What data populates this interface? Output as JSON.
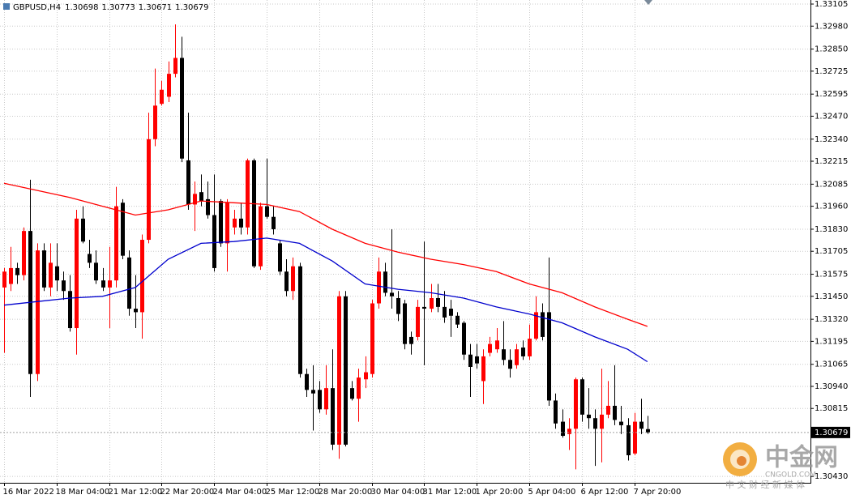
{
  "chart_data": {
    "type": "candlestick",
    "title": "GBPUSD,H4",
    "categories": [
      "16 Mar 2022",
      null,
      null,
      null,
      null,
      null,
      null,
      null,
      "18 Mar 04:00",
      null,
      null,
      null,
      null,
      null,
      null,
      null,
      "21 Mar 12:00",
      null,
      null,
      null,
      null,
      null,
      null,
      null,
      "22 Mar 20:00",
      null,
      null,
      null,
      null,
      null,
      null,
      null,
      "24 Mar 04:00",
      null,
      null,
      null,
      null,
      null,
      null,
      null,
      "25 Mar 12:00",
      null,
      null,
      null,
      null,
      null,
      null,
      null,
      "28 Mar 20:00",
      null,
      null,
      null,
      null,
      null,
      null,
      null,
      "30 Mar 04:00",
      null,
      null,
      null,
      null,
      null,
      null,
      null,
      "31 Mar 12:00",
      null,
      null,
      null,
      null,
      null,
      null,
      null,
      "1 Apr 20:00",
      null,
      null,
      null,
      null,
      null,
      null,
      null,
      "5 Apr 04:00",
      null,
      null,
      null,
      null,
      null,
      null,
      null,
      "6 Apr 12:00",
      null,
      null,
      null,
      null,
      null,
      null,
      null,
      "7 Apr 20:00",
      null,
      null
    ],
    "open": [
      1.315,
      1.3152,
      1.3161,
      1.3157,
      1.3182,
      1.3101,
      1.3171,
      1.315,
      1.3162,
      1.3154,
      1.3148,
      1.3127,
      1.3189,
      1.3169,
      1.3164,
      1.3154,
      1.315,
      1.3154,
      1.3198,
      1.3167,
      1.3138,
      1.3136,
      1.3177,
      1.3234,
      1.3254,
      1.3258,
      1.3271,
      1.328,
      1.3222,
      1.3197,
      1.3204,
      1.32,
      1.3191,
      1.3199,
      1.3175,
      1.3184,
      1.3189,
      1.3184,
      1.3222,
      1.3162,
      1.3196,
      1.319,
      1.3175,
      1.3159,
      1.3148,
      1.3162,
      1.3101,
      1.3092,
      1.3092,
      1.3081,
      1.3093,
      1.3061,
      1.3145,
      1.3093,
      1.3087,
      1.3098,
      1.3101,
      1.3141,
      1.3159,
      1.3147,
      1.3144,
      1.3141,
      1.3122,
      1.3122,
      1.3139,
      1.3138,
      1.3144,
      1.3139,
      1.3138,
      1.3134,
      1.313,
      1.3112,
      1.3111,
      1.3097,
      1.3113,
      1.3115,
      1.3115,
      1.3109,
      1.3106,
      1.3116,
      1.3111,
      1.3121,
      1.3136,
      1.3136,
      1.3086,
      1.3074,
      1.3067,
      1.307,
      1.3098,
      1.3078,
      1.3076,
      1.307,
      1.3078,
      1.3083,
      1.3074,
      1.3072,
      1.3056,
      1.3074,
      1.30698
    ],
    "high": [
      1.3161,
      1.3173,
      1.3164,
      1.3184,
      1.3211,
      1.3175,
      1.3175,
      1.3175,
      1.3175,
      1.3159,
      1.3157,
      1.3194,
      1.3196,
      1.3177,
      1.3171,
      1.3161,
      1.3173,
      1.3207,
      1.32,
      1.3171,
      1.3157,
      1.318,
      1.3249,
      1.3274,
      1.3267,
      1.3278,
      1.3299,
      1.3292,
      1.3249,
      1.321,
      1.3214,
      1.321,
      1.3214,
      1.32,
      1.32,
      1.3194,
      1.3198,
      1.3223,
      1.3223,
      1.3198,
      1.3223,
      1.3196,
      1.3177,
      1.3166,
      1.3167,
      1.3164,
      1.3104,
      1.3106,
      1.3097,
      1.3106,
      1.3115,
      1.3148,
      1.3148,
      1.3097,
      1.3104,
      1.3111,
      1.3143,
      1.3167,
      1.3164,
      1.3183,
      1.3148,
      1.3143,
      1.3125,
      1.3143,
      1.3176,
      1.3152,
      1.3152,
      1.3148,
      1.3143,
      1.3136,
      1.3131,
      1.3118,
      1.3118,
      1.3115,
      1.3122,
      1.3127,
      1.3131,
      1.3115,
      1.3118,
      1.312,
      1.3129,
      1.3145,
      1.3141,
      1.3167,
      1.309,
      1.3081,
      1.3076,
      1.3099,
      1.3099,
      1.3093,
      1.3081,
      1.3104,
      1.3097,
      1.3106,
      1.3083,
      1.3076,
      1.3079,
      1.3087,
      1.30773
    ],
    "low": [
      1.3113,
      1.3148,
      1.3152,
      1.3154,
      1.3088,
      1.3097,
      1.3148,
      1.3145,
      1.3148,
      1.3143,
      1.3125,
      1.3112,
      1.3175,
      1.3161,
      1.3152,
      1.3148,
      1.3127,
      1.315,
      1.3166,
      1.3134,
      1.3127,
      1.3121,
      1.3175,
      1.323,
      1.3253,
      1.3255,
      1.3269,
      1.3221,
      1.3194,
      1.3182,
      1.3196,
      1.3189,
      1.3159,
      1.3173,
      1.3159,
      1.318,
      1.318,
      1.318,
      1.3161,
      1.316,
      1.3189,
      1.318,
      1.3157,
      1.3145,
      1.3143,
      1.3099,
      1.3088,
      1.3069,
      1.3079,
      1.3078,
      1.3058,
      1.3053,
      1.306,
      1.3086,
      1.3074,
      1.3093,
      1.3099,
      1.3138,
      1.3145,
      1.3138,
      1.3131,
      1.3115,
      1.3112,
      1.312,
      1.3106,
      1.3136,
      1.3136,
      1.313,
      1.3122,
      1.3127,
      1.3109,
      1.3088,
      1.3104,
      1.3084,
      1.3111,
      1.3113,
      1.3106,
      1.3099,
      1.3104,
      1.3109,
      1.3109,
      1.312,
      1.312,
      1.3083,
      1.307,
      1.3065,
      1.3058,
      1.3047,
      1.3074,
      1.307,
      1.3049,
      1.3051,
      1.3076,
      1.3072,
      1.3067,
      1.3052,
      1.3055,
      1.3067,
      1.30671
    ],
    "close": [
      1.3159,
      1.3161,
      1.3157,
      1.3182,
      1.3101,
      1.3171,
      1.315,
      1.3164,
      1.3154,
      1.3148,
      1.3127,
      1.3189,
      1.3176,
      1.3164,
      1.3154,
      1.315,
      1.3154,
      1.3196,
      1.3168,
      1.3138,
      1.3136,
      1.3177,
      1.3234,
      1.3253,
      1.3262,
      1.3271,
      1.328,
      1.3223,
      1.3197,
      1.3203,
      1.3199,
      1.3191,
      1.3161,
      1.3175,
      1.3198,
      1.3189,
      1.3184,
      1.3222,
      1.3162,
      1.3196,
      1.319,
      1.3183,
      1.3159,
      1.3148,
      1.3162,
      1.3101,
      1.3092,
      1.309,
      1.3081,
      1.3093,
      1.3061,
      1.3145,
      1.3061,
      1.3087,
      1.3099,
      1.3102,
      1.3141,
      1.3159,
      1.3147,
      1.3145,
      1.3135,
      1.3118,
      1.3118,
      1.3139,
      1.3138,
      1.3144,
      1.3139,
      1.3133,
      1.3134,
      1.3129,
      1.3112,
      1.3105,
      1.3107,
      1.3111,
      1.3118,
      1.312,
      1.3109,
      1.3104,
      1.3115,
      1.3111,
      1.3121,
      1.3136,
      1.3122,
      1.3086,
      1.3073,
      1.3066,
      1.307,
      1.3098,
      1.3078,
      1.3076,
      1.307,
      1.3078,
      1.3083,
      1.3075,
      1.3072,
      1.3055,
      1.3074,
      1.307,
      1.30679
    ],
    "up_color": "#ff0000",
    "down_color": "#000000",
    "lines": [
      {
        "color": "#ff0000",
        "x": [
          0,
          5,
          10,
          15,
          20,
          25,
          30,
          35,
          40,
          45,
          50,
          55,
          60,
          65,
          70,
          75,
          80,
          85,
          90,
          95,
          98
        ],
        "values": [
          1.3209,
          1.3205,
          1.3201,
          1.3196,
          1.3191,
          1.3194,
          1.3199,
          1.3198,
          1.3197,
          1.3193,
          1.3183,
          1.3175,
          1.317,
          1.3166,
          1.3163,
          1.3159,
          1.3152,
          1.3147,
          1.3139,
          1.3132,
          1.3128
        ]
      },
      {
        "color": "#0000cd",
        "x": [
          0,
          5,
          10,
          15,
          20,
          25,
          30,
          35,
          40,
          45,
          50,
          55,
          60,
          65,
          70,
          75,
          80,
          85,
          90,
          95,
          98
        ],
        "values": [
          1.314,
          1.3142,
          1.3144,
          1.3145,
          1.315,
          1.3166,
          1.3175,
          1.3176,
          1.3178,
          1.3175,
          1.3165,
          1.3152,
          1.3149,
          1.3147,
          1.3144,
          1.3139,
          1.3135,
          1.313,
          1.3122,
          1.3115,
          1.3108
        ]
      }
    ],
    "ylim": [
      1.30394,
      1.33128
    ],
    "yticks": [
      {
        "value": 1.33105,
        "label": "1.33105"
      },
      {
        "value": 1.3298,
        "label": "1.32980"
      },
      {
        "value": 1.3285,
        "label": "1.32850"
      },
      {
        "value": 1.32725,
        "label": "1.32725"
      },
      {
        "value": 1.32595,
        "label": "1.32595"
      },
      {
        "value": 1.3247,
        "label": "1.32470"
      },
      {
        "value": 1.3234,
        "label": "1.32340"
      },
      {
        "value": 1.32215,
        "label": "1.32215"
      },
      {
        "value": 1.32085,
        "label": "1.32085"
      },
      {
        "value": 1.3196,
        "label": "1.31960"
      },
      {
        "value": 1.3183,
        "label": "1.31830"
      },
      {
        "value": 1.31705,
        "label": "1.31705"
      },
      {
        "value": 1.31575,
        "label": "1.31575"
      },
      {
        "value": 1.3145,
        "label": "1.31450"
      },
      {
        "value": 1.3132,
        "label": "1.31320"
      },
      {
        "value": 1.31195,
        "label": "1.31195"
      },
      {
        "value": 1.31065,
        "label": "1.31065"
      },
      {
        "value": 1.3094,
        "label": "1.30940"
      },
      {
        "value": 1.30815,
        "label": "1.30815"
      },
      {
        "value": 1.3043,
        "label": "1.30430"
      }
    ],
    "grid": true
  },
  "watermark": {
    "name": "中金网",
    "site": "CNGOLD.COM",
    "slogan": "中 文 财 经 新 媒 体"
  }
}
